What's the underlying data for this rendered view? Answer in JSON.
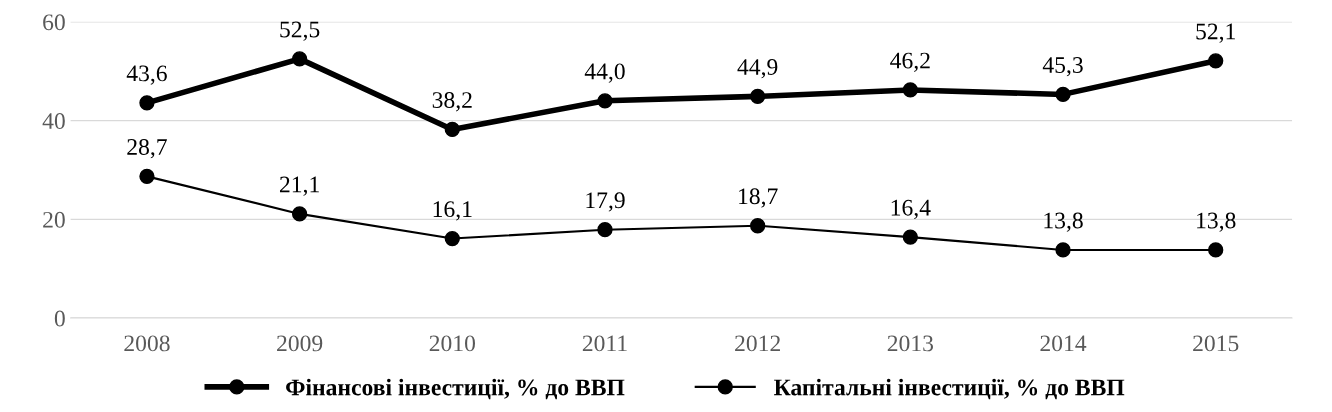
{
  "chart_data": {
    "type": "line",
    "categories": [
      "2008",
      "2009",
      "2010",
      "2011",
      "2012",
      "2013",
      "2014",
      "2015"
    ],
    "series": [
      {
        "name": "Фінансові інвестиції, % до ВВП",
        "color": "#000000",
        "values": [
          43.6,
          52.5,
          38.2,
          44.0,
          44.9,
          46.2,
          45.3,
          52.1
        ],
        "value_labels": [
          "43,6",
          "52,5",
          "38,2",
          "44,0",
          "44,9",
          "46,2",
          "45,3",
          "52,1"
        ]
      },
      {
        "name": "Капітальні інвестиції, % до ВВП",
        "color": "#000000",
        "values": [
          28.7,
          21.1,
          16.1,
          17.9,
          18.7,
          16.4,
          13.8,
          13.8
        ],
        "value_labels": [
          "28,7",
          "21,1",
          "16,1",
          "17,9",
          "18,7",
          "16,4",
          "13,8",
          "13,8"
        ]
      }
    ],
    "ylim": [
      0,
      60
    ],
    "yticks": [
      0,
      20,
      40,
      60
    ],
    "grid": "y",
    "legend": "bottom",
    "marker": "circle",
    "line_style": "solid"
  }
}
